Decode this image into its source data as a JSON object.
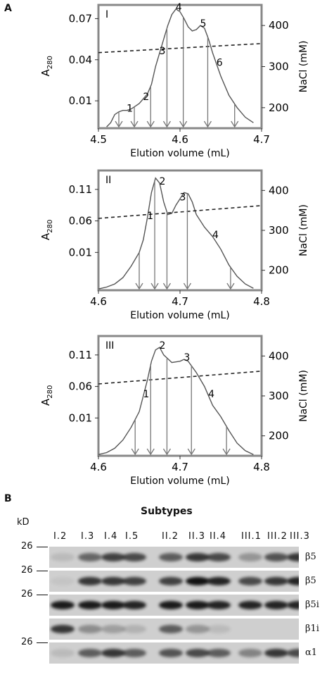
{
  "panel_a_letter": "A",
  "panel_b_letter": "B",
  "chart_data": [
    {
      "type": "line",
      "panel": "I",
      "xlabel": "Elution volume (mL)",
      "ylabel": "A280",
      "y2label": "NaCl (mM)",
      "xlim": [
        4.5,
        4.7
      ],
      "xticks": [
        "4.5",
        "4.6",
        "4.7"
      ],
      "ylim": [
        -0.01,
        0.08
      ],
      "yticks": [
        "0.01",
        "0.04",
        "0.07"
      ],
      "y2lim": [
        150,
        450
      ],
      "y2ticks": [
        "200",
        "300",
        "400"
      ],
      "series": [
        {
          "values": [
            [
              4.51,
              -0.009
            ],
            [
              4.515,
              -0.006
            ],
            [
              4.52,
              0.0
            ],
            [
              4.525,
              0.002
            ],
            [
              4.53,
              0.003
            ],
            [
              4.535,
              0.003
            ],
            [
              4.54,
              0.004
            ],
            [
              4.55,
              0.008
            ],
            [
              4.56,
              0.015
            ],
            [
              4.565,
              0.022
            ],
            [
              4.57,
              0.035
            ],
            [
              4.575,
              0.045
            ],
            [
              4.58,
              0.055
            ],
            [
              4.585,
              0.065
            ],
            [
              4.59,
              0.073
            ],
            [
              4.595,
              0.077
            ],
            [
              4.6,
              0.075
            ],
            [
              4.605,
              0.07
            ],
            [
              4.61,
              0.064
            ],
            [
              4.615,
              0.061
            ],
            [
              4.62,
              0.062
            ],
            [
              4.625,
              0.065
            ],
            [
              4.63,
              0.063
            ],
            [
              4.635,
              0.055
            ],
            [
              4.64,
              0.045
            ],
            [
              4.65,
              0.028
            ],
            [
              4.66,
              0.014
            ],
            [
              4.67,
              0.005
            ],
            [
              4.68,
              -0.002
            ],
            [
              4.69,
              -0.006
            ]
          ]
        },
        {
          "axis": "y2",
          "style": "dashed",
          "values": [
            [
              4.5,
              334
            ],
            [
              4.7,
              356
            ]
          ]
        }
      ],
      "fractions": [
        {
          "label": "1",
          "x": 4.535
        },
        {
          "label": "2",
          "x": 4.555
        },
        {
          "label": "3",
          "x": 4.575
        },
        {
          "label": "4",
          "x": 4.595
        },
        {
          "label": "5",
          "x": 4.625
        },
        {
          "label": "6",
          "x": 4.645
        }
      ]
    },
    {
      "type": "line",
      "panel": "II",
      "xlabel": "Elution volume (mL)",
      "ylabel": "A280",
      "y2label": "NaCl (mM)",
      "xlim": [
        4.6,
        4.8
      ],
      "xticks": [
        "4.6",
        "4.7",
        "4.8"
      ],
      "ylim": [
        -0.05,
        0.14
      ],
      "yticks": [
        "0.01",
        "0.06",
        "0.11"
      ],
      "y2lim": [
        150,
        450
      ],
      "y2ticks": [
        "200",
        "300",
        "400"
      ],
      "series": [
        {
          "values": [
            [
              4.6,
              -0.048
            ],
            [
              4.61,
              -0.045
            ],
            [
              4.62,
              -0.04
            ],
            [
              4.63,
              -0.03
            ],
            [
              4.64,
              -0.012
            ],
            [
              4.65,
              0.01
            ],
            [
              4.655,
              0.03
            ],
            [
              4.66,
              0.065
            ],
            [
              4.665,
              0.105
            ],
            [
              4.67,
              0.128
            ],
            [
              4.675,
              0.12
            ],
            [
              4.68,
              0.09
            ],
            [
              4.685,
              0.07
            ],
            [
              4.69,
              0.072
            ],
            [
              4.695,
              0.085
            ],
            [
              4.7,
              0.095
            ],
            [
              4.705,
              0.105
            ],
            [
              4.71,
              0.103
            ],
            [
              4.715,
              0.09
            ],
            [
              4.72,
              0.07
            ],
            [
              4.73,
              0.05
            ],
            [
              4.74,
              0.035
            ],
            [
              4.75,
              0.015
            ],
            [
              4.76,
              -0.01
            ],
            [
              4.77,
              -0.028
            ],
            [
              4.78,
              -0.04
            ],
            [
              4.79,
              -0.047
            ]
          ]
        },
        {
          "axis": "y2",
          "style": "dashed",
          "values": [
            [
              4.6,
              330
            ],
            [
              4.8,
              362
            ]
          ]
        }
      ],
      "fractions": [
        {
          "label": "1",
          "x": 4.66
        },
        {
          "label": "2",
          "x": 4.675
        },
        {
          "label": "3",
          "x": 4.7
        },
        {
          "label": "4",
          "x": 4.74
        }
      ]
    },
    {
      "type": "line",
      "panel": "III",
      "xlabel": "Elution volume (mL)",
      "ylabel": "A280",
      "y2label": "NaCl (mM)",
      "xlim": [
        4.6,
        4.8
      ],
      "xticks": [
        "4.6",
        "4.7",
        "4.8"
      ],
      "ylim": [
        -0.05,
        0.14
      ],
      "yticks": [
        "0.01",
        "0.06",
        "0.11"
      ],
      "y2lim": [
        150,
        450
      ],
      "y2ticks": [
        "200",
        "300",
        "400"
      ],
      "series": [
        {
          "values": [
            [
              4.6,
              -0.048
            ],
            [
              4.61,
              -0.045
            ],
            [
              4.62,
              -0.038
            ],
            [
              4.63,
              -0.025
            ],
            [
              4.64,
              -0.005
            ],
            [
              4.65,
              0.02
            ],
            [
              4.655,
              0.045
            ],
            [
              4.66,
              0.07
            ],
            [
              4.665,
              0.1
            ],
            [
              4.67,
              0.118
            ],
            [
              4.675,
              0.122
            ],
            [
              4.68,
              0.11
            ],
            [
              4.69,
              0.098
            ],
            [
              4.7,
              0.1
            ],
            [
              4.705,
              0.103
            ],
            [
              4.71,
              0.1
            ],
            [
              4.72,
              0.082
            ],
            [
              4.73,
              0.06
            ],
            [
              4.74,
              0.03
            ],
            [
              4.75,
              0.012
            ],
            [
              4.76,
              -0.01
            ],
            [
              4.77,
              -0.03
            ],
            [
              4.78,
              -0.042
            ],
            [
              4.79,
              -0.048
            ]
          ]
        },
        {
          "axis": "y2",
          "style": "dashed",
          "values": [
            [
              4.6,
              330
            ],
            [
              4.8,
              362
            ]
          ]
        }
      ],
      "fractions": [
        {
          "label": "1",
          "x": 4.655
        },
        {
          "label": "2",
          "x": 4.675
        },
        {
          "label": "3",
          "x": 4.705
        },
        {
          "label": "4",
          "x": 4.735
        }
      ]
    }
  ],
  "blot": {
    "title": "Subtypes",
    "kd_label": "kD",
    "lanes": [
      "I.2",
      "I.3",
      "I.4",
      "I.5",
      "II.2",
      "II.3",
      "II.4",
      "III.1",
      "III.2",
      "III.3"
    ],
    "rows": [
      {
        "mw": "26",
        "protein": "β5",
        "intensity": [
          0.1,
          0.55,
          0.75,
          0.7,
          0.6,
          0.8,
          0.7,
          0.3,
          0.65,
          0.8
        ]
      },
      {
        "mw": "26",
        "protein": "β5",
        "intensity": [
          0.05,
          0.8,
          0.8,
          0.75,
          0.75,
          1.0,
          0.9,
          0.7,
          0.8,
          0.9
        ]
      },
      {
        "mw": "26",
        "protein": "β5i",
        "intensity": [
          0.95,
          0.95,
          0.95,
          0.9,
          0.95,
          0.95,
          0.9,
          0.9,
          0.9,
          0.9
        ]
      },
      {
        "mw": "",
        "protein": "β1i",
        "intensity": [
          0.8,
          0.35,
          0.25,
          0.15,
          0.6,
          0.3,
          0.1,
          0.0,
          0.0,
          0.0
        ]
      },
      {
        "mw": "26",
        "protein": "α1",
        "intensity": [
          0.1,
          0.6,
          0.8,
          0.6,
          0.65,
          0.7,
          0.6,
          0.4,
          0.8,
          0.7
        ]
      }
    ]
  }
}
